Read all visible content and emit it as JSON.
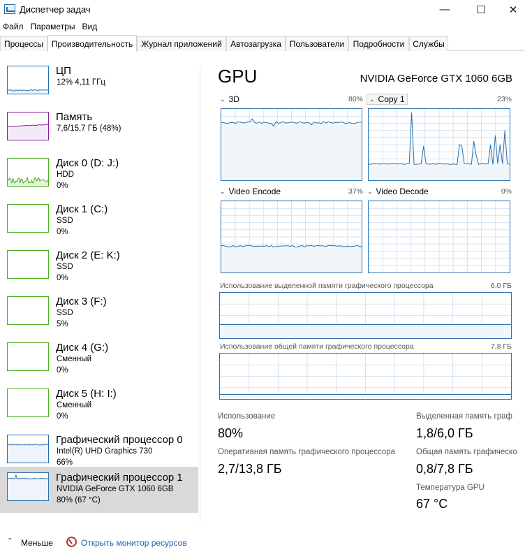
{
  "window": {
    "title": "Диспетчер задач",
    "minimize_glyph": "—",
    "maximize_glyph": "☐",
    "close_glyph": "✕"
  },
  "menu": [
    "Файл",
    "Параметры",
    "Вид"
  ],
  "tabs": [
    "Процессы",
    "Производительность",
    "Журнал приложений",
    "Автозагрузка",
    "Пользователи",
    "Подробности",
    "Службы"
  ],
  "active_tab": "Производительность",
  "sidebar": [
    {
      "name": "ЦП",
      "line1": "12% 4,11 ГГц",
      "line2": "",
      "color": "#1f78b4",
      "kind": "cpu"
    },
    {
      "name": "Память",
      "line1": "7,6/15,7 ГБ (48%)",
      "line2": "",
      "color": "#8b1fa0",
      "kind": "mem"
    },
    {
      "name": "Диск 0 (D: J:)",
      "line1": "HDD",
      "line2": "0%",
      "color": "#4caf1f",
      "kind": "disk-active"
    },
    {
      "name": "Диск 1 (C:)",
      "line1": "SSD",
      "line2": "0%",
      "color": "#4caf1f",
      "kind": "disk"
    },
    {
      "name": "Диск 2 (E: K:)",
      "line1": "SSD",
      "line2": "0%",
      "color": "#4caf1f",
      "kind": "disk"
    },
    {
      "name": "Диск 3 (F:)",
      "line1": "SSD",
      "line2": "5%",
      "color": "#4caf1f",
      "kind": "disk"
    },
    {
      "name": "Диск 4 (G:)",
      "line1": "Сменный",
      "line2": "0%",
      "color": "#4caf1f",
      "kind": "disk"
    },
    {
      "name": "Диск 5 (H: I:)",
      "line1": "Сменный",
      "line2": "0%",
      "color": "#4caf1f",
      "kind": "disk"
    },
    {
      "name": "Графический процессор 0",
      "line1": "Intel(R) UHD Graphics 730",
      "line2": "66%",
      "color": "#2a6fb0",
      "kind": "gpu0"
    },
    {
      "name": "Графический процессор 1",
      "line1": "NVIDIA GeForce GTX 1060 6GB",
      "line2": "80% (67 °C)",
      "color": "#2a6fb0",
      "kind": "gpu1",
      "selected": true
    }
  ],
  "gpu": {
    "title": "GPU",
    "model": "NVIDIA GeForce GTX 1060 6GB",
    "engines": [
      {
        "label": "3D",
        "percent": "80%"
      },
      {
        "label": "Copy 1",
        "percent": "23%"
      },
      {
        "label": "Video Encode",
        "percent": "37%"
      },
      {
        "label": "Video Decode",
        "percent": "0%"
      }
    ],
    "dedicated_memory_label": "Использование выделенной памяти графического процессора",
    "dedicated_memory_max": "6,0 ГБ",
    "shared_memory_label": "Использование общей памяти графического процессора",
    "shared_memory_max": "7,8 ГБ",
    "stats": {
      "utilization_label": "Использование",
      "utilization_value": "80%",
      "dedicated_label": "Выделенная память граф",
      "dedicated_value": "1,8/6,0 ГБ",
      "gpu_ram_label": "Оперативная память графического процессора",
      "gpu_ram_value": "2,7/13,8 ГБ",
      "shared_label": "Общая память графическо",
      "shared_value": "0,8/7,8 ГБ",
      "temp_label": "Температура GPU",
      "temp_value": "67 °C"
    }
  },
  "footer": {
    "less": "Меньше",
    "resource_monitor": "Открыть монитор ресурсов"
  },
  "colors": {
    "gpu_line": "#2a6fb0",
    "gpu_fill": "#f1f6fb",
    "grid": "#d6e4f1"
  }
}
